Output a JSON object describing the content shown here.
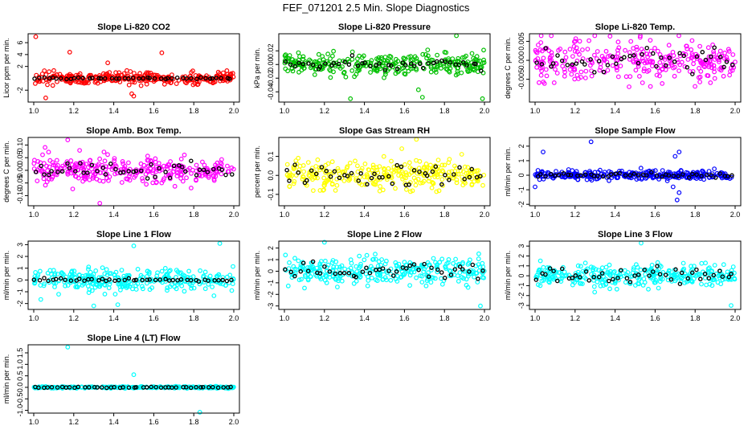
{
  "figure_title": "FEF_071201  2.5 Min. Slope Diagnostics",
  "chart_data": [
    {
      "type": "scatter",
      "title": "Slope Li-820 CO2",
      "ylabel": "Licor ppm per min.",
      "color": "#ff0000",
      "xlim": [
        1.0,
        2.0
      ],
      "xticks": [
        "1.0",
        "1.2",
        "1.4",
        "1.6",
        "1.8",
        "2.0"
      ],
      "ylim": [
        -4.0,
        7.5
      ],
      "yticks": [
        {
          "v": 6,
          "label": "6"
        },
        {
          "v": 4,
          "label": "4"
        },
        {
          "v": 2,
          "label": "2"
        },
        {
          "v": -2,
          "label": "-2"
        }
      ],
      "series": [
        {
          "name": "colored",
          "spread": 0.8,
          "outliers": [
            [
              1.01,
              7.0
            ],
            [
              1.06,
              -3.3
            ],
            [
              1.18,
              4.4
            ],
            [
              1.5,
              -3.0
            ],
            [
              1.49,
              -2.6
            ],
            [
              1.64,
              4.3
            ],
            [
              1.37,
              2.6
            ]
          ]
        },
        {
          "name": "black",
          "spread": 0.12
        }
      ]
    },
    {
      "type": "scatter",
      "title": "Slope Li-820 Pressure",
      "ylabel": "kPa per min.",
      "color": "#00c000",
      "xlim": [
        1.0,
        2.0
      ],
      "xticks": [
        "1.0",
        "1.2",
        "1.4",
        "1.6",
        "1.8",
        "2.0"
      ],
      "ylim": [
        -0.055,
        0.045
      ],
      "yticks": [
        {
          "v": 0.02,
          "label": "0.02"
        },
        {
          "v": 0.0,
          "label": "0.00"
        },
        {
          "v": -0.02,
          "label": "-0.02"
        },
        {
          "v": -0.04,
          "label": "-0.04"
        }
      ],
      "series": [
        {
          "name": "colored",
          "spread": 0.012,
          "outliers": [
            [
              1.86,
              0.042
            ],
            [
              1.33,
              -0.05
            ],
            [
              1.69,
              -0.048
            ],
            [
              1.99,
              -0.05
            ],
            [
              1.67,
              -0.037
            ]
          ]
        },
        {
          "name": "black",
          "spread": 0.006
        }
      ]
    },
    {
      "type": "scatter",
      "title": "Slope Li-820 Temp.",
      "ylabel": "degrees C per min.",
      "color": "#ff00ff",
      "xlim": [
        1.0,
        2.0
      ],
      "xticks": [
        "1.0",
        "1.2",
        "1.4",
        "1.6",
        "1.8",
        "2.0"
      ],
      "ylim": [
        -0.011,
        0.007
      ],
      "yticks": [
        {
          "v": 0.005,
          "label": "0.005"
        },
        {
          "v": 0.0,
          "label": "0.000"
        },
        {
          "v": -0.005,
          "label": "-0.005"
        }
      ],
      "series": [
        {
          "name": "colored",
          "spread": 0.0045,
          "outliers": []
        },
        {
          "name": "black",
          "spread": 0.003
        }
      ]
    },
    {
      "type": "scatter",
      "title": "Slope Amb. Box Temp.",
      "ylabel": "degrees C per min.",
      "color": "#ff00ff",
      "xlim": [
        1.0,
        2.0
      ],
      "xticks": [
        "1.0",
        "1.2",
        "1.4",
        "1.6",
        "1.8",
        "2.0"
      ],
      "ylim": [
        -0.14,
        0.13
      ],
      "yticks": [
        {
          "v": 0.1,
          "label": "0.10"
        },
        {
          "v": 0.05,
          "label": "0.05"
        },
        {
          "v": 0.0,
          "label": "0.00"
        },
        {
          "v": -0.05,
          "label": "-0.05"
        },
        {
          "v": -0.1,
          "label": "-0.10"
        }
      ],
      "series": [
        {
          "name": "colored",
          "spread": 0.045,
          "outliers": [
            [
              1.17,
              0.12
            ],
            [
              1.33,
              -0.13
            ]
          ]
        },
        {
          "name": "black",
          "spread": 0.03
        }
      ]
    },
    {
      "type": "scatter",
      "title": "Slope Gas Stream RH",
      "ylabel": "percent per min.",
      "color": "#ffff00",
      "xlim": [
        1.0,
        2.0
      ],
      "xticks": [
        "1.0",
        "1.2",
        "1.4",
        "1.6",
        "1.8",
        "2.0"
      ],
      "ylim": [
        -0.16,
        0.2
      ],
      "yticks": [
        {
          "v": 0.1,
          "label": "0.1"
        },
        {
          "v": 0.0,
          "label": "0.0"
        },
        {
          "v": -0.1,
          "label": "-0.1"
        }
      ],
      "series": [
        {
          "name": "colored",
          "spread": 0.06,
          "outliers": [
            [
              1.66,
              0.19
            ]
          ]
        },
        {
          "name": "black",
          "spread": 0.045
        }
      ]
    },
    {
      "type": "scatter",
      "title": "Slope Sample Flow",
      "ylabel": "ml/min per min.",
      "color": "#0000ff",
      "xlim": [
        1.0,
        2.0
      ],
      "xticks": [
        "1.0",
        "1.2",
        "1.4",
        "1.6",
        "1.8",
        "2.0"
      ],
      "ylim": [
        -2.1,
        2.6
      ],
      "yticks": [
        {
          "v": 2,
          "label": "2"
        },
        {
          "v": 1,
          "label": "1"
        },
        {
          "v": 0,
          "label": "0"
        },
        {
          "v": -1,
          "label": "-1"
        },
        {
          "v": -2,
          "label": "-2"
        }
      ],
      "series": [
        {
          "name": "colored",
          "spread": 0.25,
          "outliers": [
            [
              1.04,
              1.6
            ],
            [
              1.28,
              2.3
            ],
            [
              1.7,
              1.3
            ],
            [
              1.71,
              -1.7
            ],
            [
              1.72,
              -1.2
            ],
            [
              1.69,
              -0.8
            ],
            [
              1.0,
              -0.8
            ],
            [
              1.72,
              1.6
            ]
          ]
        },
        {
          "name": "black",
          "spread": 0.12
        }
      ]
    },
    {
      "type": "scatter",
      "title": "Slope Line 1 Flow",
      "ylabel": "ml/min per min.",
      "color": "#00ffff",
      "xlim": [
        1.0,
        2.0
      ],
      "xticks": [
        "1.0",
        "1.2",
        "1.4",
        "1.6",
        "1.8",
        "2.0"
      ],
      "ylim": [
        -2.5,
        3.3
      ],
      "yticks": [
        {
          "v": 3,
          "label": "3"
        },
        {
          "v": 2,
          "label": "2"
        },
        {
          "v": 1,
          "label": "1"
        },
        {
          "v": 0,
          "label": "0"
        },
        {
          "v": -1,
          "label": "-1"
        },
        {
          "v": -2,
          "label": "-2"
        }
      ],
      "series": [
        {
          "name": "colored",
          "spread": 0.8,
          "outliers": [
            [
              1.5,
              2.9
            ],
            [
              1.93,
              3.1
            ],
            [
              1.3,
              -2.2
            ],
            [
              1.42,
              -2.1
            ]
          ]
        },
        {
          "name": "black",
          "spread": 0.1
        }
      ]
    },
    {
      "type": "scatter",
      "title": "Slope Line 2 Flow",
      "ylabel": "ml/min per min.",
      "color": "#00ffff",
      "xlim": [
        1.0,
        2.0
      ],
      "xticks": [
        "1.0",
        "1.2",
        "1.4",
        "1.6",
        "1.8",
        "2.0"
      ],
      "ylim": [
        -3.3,
        2.6
      ],
      "yticks": [
        {
          "v": 2,
          "label": "2"
        },
        {
          "v": 1,
          "label": "1"
        },
        {
          "v": 0,
          "label": "0"
        },
        {
          "v": -1,
          "label": "-1"
        },
        {
          "v": -2,
          "label": "-2"
        },
        {
          "v": -3,
          "label": "-3"
        }
      ],
      "series": [
        {
          "name": "colored",
          "spread": 0.9,
          "outliers": [
            [
              1.2,
              2.5
            ],
            [
              1.98,
              -3.0
            ]
          ]
        },
        {
          "name": "black",
          "spread": 0.6
        }
      ]
    },
    {
      "type": "scatter",
      "title": "Slope Line 3 Flow",
      "ylabel": "ml/min per min.",
      "color": "#00ffff",
      "xlim": [
        1.0,
        2.0
      ],
      "xticks": [
        "1.0",
        "1.2",
        "1.4",
        "1.6",
        "1.8",
        "2.0"
      ],
      "ylim": [
        -3.4,
        3.5
      ],
      "yticks": [
        {
          "v": 3,
          "label": "3"
        },
        {
          "v": 2,
          "label": "2"
        },
        {
          "v": 1,
          "label": "1"
        },
        {
          "v": 0,
          "label": "0"
        },
        {
          "v": -1,
          "label": "-1"
        },
        {
          "v": -2,
          "label": "-2"
        },
        {
          "v": -3,
          "label": "-3"
        }
      ],
      "series": [
        {
          "name": "colored",
          "spread": 0.9,
          "outliers": [
            [
              1.53,
              3.3
            ],
            [
              1.98,
              -3.0
            ]
          ]
        },
        {
          "name": "black",
          "spread": 0.6
        }
      ]
    },
    {
      "type": "scatter",
      "title": "Slope Line 4 (LT) Flow",
      "ylabel": "ml/min per min.",
      "color": "#00ffff",
      "xlim": [
        1.0,
        2.0
      ],
      "xticks": [
        "1.0",
        "1.2",
        "1.4",
        "1.6",
        "1.8",
        "2.0"
      ],
      "ylim": [
        -1.12,
        1.85
      ],
      "yticks": [
        {
          "v": 1.5,
          "label": "1.5"
        },
        {
          "v": 1.0,
          "label": "1.0"
        },
        {
          "v": 0.5,
          "label": "0.5"
        },
        {
          "v": 0.0,
          "label": "0.0"
        },
        {
          "v": -0.5,
          "label": "-0.5"
        },
        {
          "v": -1.0,
          "label": "-1.0"
        }
      ],
      "series": [
        {
          "name": "colored",
          "spread": 0.03,
          "outliers": [
            [
              1.17,
              1.75
            ],
            [
              1.5,
              0.55
            ],
            [
              1.83,
              -1.08
            ]
          ]
        },
        {
          "name": "black",
          "spread": 0.02
        }
      ]
    }
  ]
}
